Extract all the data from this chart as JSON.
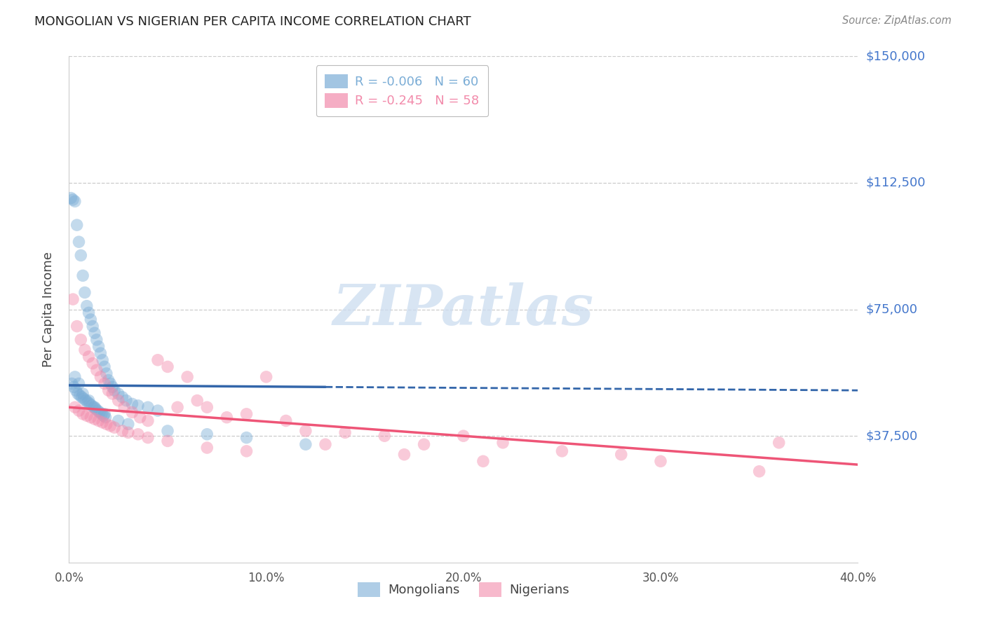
{
  "title": "MONGOLIAN VS NIGERIAN PER CAPITA INCOME CORRELATION CHART",
  "source": "Source: ZipAtlas.com",
  "ylabel": "Per Capita Income",
  "ylim": [
    0,
    150000
  ],
  "xlim": [
    0,
    40
  ],
  "ytick_vals": [
    37500,
    75000,
    112500,
    150000
  ],
  "ytick_labels": [
    "$37,500",
    "$75,000",
    "$112,500",
    "$150,000"
  ],
  "xtick_vals": [
    0,
    10,
    20,
    30,
    40
  ],
  "xtick_labels": [
    "0.0%",
    "10.0%",
    "20.0%",
    "30.0%",
    "40.0%"
  ],
  "blue_color": "#7BADD6",
  "pink_color": "#F28BAB",
  "blue_line_color": "#3366AA",
  "pink_line_color": "#EE5577",
  "right_label_color": "#4477CC",
  "grid_color": "#CCCCCC",
  "title_color": "#222222",
  "source_color": "#888888",
  "blue_R": -0.006,
  "blue_N": 60,
  "pink_R": -0.245,
  "pink_N": 58,
  "blue_trend_y0": 52500,
  "blue_trend_y40": 51000,
  "blue_solid_end_x": 13,
  "pink_trend_y0": 46000,
  "pink_trend_y40": 29000,
  "marker_size": 160,
  "marker_alpha": 0.45,
  "blue_scatter_x": [
    0.1,
    0.2,
    0.3,
    0.4,
    0.5,
    0.6,
    0.7,
    0.8,
    0.9,
    1.0,
    1.1,
    1.2,
    1.3,
    1.4,
    1.5,
    1.6,
    1.7,
    1.8,
    1.9,
    2.0,
    2.1,
    2.2,
    2.3,
    2.5,
    2.7,
    2.9,
    3.2,
    3.5,
    4.0,
    4.5,
    0.15,
    0.25,
    0.35,
    0.45,
    0.55,
    0.65,
    0.75,
    0.85,
    0.95,
    1.05,
    1.15,
    1.25,
    1.35,
    1.45,
    1.55,
    1.65,
    1.75,
    1.85,
    0.3,
    0.5,
    0.7,
    1.0,
    1.3,
    1.8,
    2.5,
    3.0,
    5.0,
    7.0,
    9.0,
    12.0
  ],
  "blue_scatter_y": [
    108000,
    107500,
    107000,
    100000,
    95000,
    91000,
    85000,
    80000,
    76000,
    74000,
    72000,
    70000,
    68000,
    66000,
    64000,
    62000,
    60000,
    58000,
    56000,
    54000,
    53000,
    52000,
    51000,
    50000,
    49000,
    48000,
    47000,
    46500,
    46000,
    45000,
    53000,
    52000,
    51000,
    50000,
    49500,
    49000,
    48500,
    48000,
    47500,
    47000,
    46500,
    46000,
    45500,
    45000,
    44500,
    44000,
    43500,
    43000,
    55000,
    53000,
    50000,
    48000,
    46000,
    44000,
    42000,
    41000,
    39000,
    38000,
    37000,
    35000
  ],
  "pink_scatter_x": [
    0.2,
    0.4,
    0.6,
    0.8,
    1.0,
    1.2,
    1.4,
    1.6,
    1.8,
    2.0,
    2.2,
    2.5,
    2.8,
    3.2,
    3.6,
    4.0,
    4.5,
    5.0,
    5.5,
    6.0,
    6.5,
    7.0,
    8.0,
    9.0,
    10.0,
    11.0,
    12.0,
    14.0,
    16.0,
    18.0,
    20.0,
    22.0,
    25.0,
    28.0,
    30.0,
    36.0,
    0.3,
    0.5,
    0.7,
    0.9,
    1.1,
    1.3,
    1.5,
    1.7,
    1.9,
    2.1,
    2.3,
    2.7,
    3.0,
    3.5,
    4.0,
    5.0,
    7.0,
    9.0,
    13.0,
    17.0,
    21.0,
    35.0
  ],
  "pink_scatter_y": [
    78000,
    70000,
    66000,
    63000,
    61000,
    59000,
    57000,
    55000,
    53000,
    51000,
    50000,
    48000,
    46000,
    44500,
    43000,
    42000,
    60000,
    58000,
    46000,
    55000,
    48000,
    46000,
    43000,
    44000,
    55000,
    42000,
    39000,
    38500,
    37500,
    35000,
    37500,
    35500,
    33000,
    32000,
    30000,
    35500,
    46000,
    45000,
    44000,
    43500,
    43000,
    42500,
    42000,
    41500,
    41000,
    40500,
    40000,
    39000,
    38500,
    38000,
    37000,
    36000,
    34000,
    33000,
    35000,
    32000,
    30000,
    27000
  ]
}
